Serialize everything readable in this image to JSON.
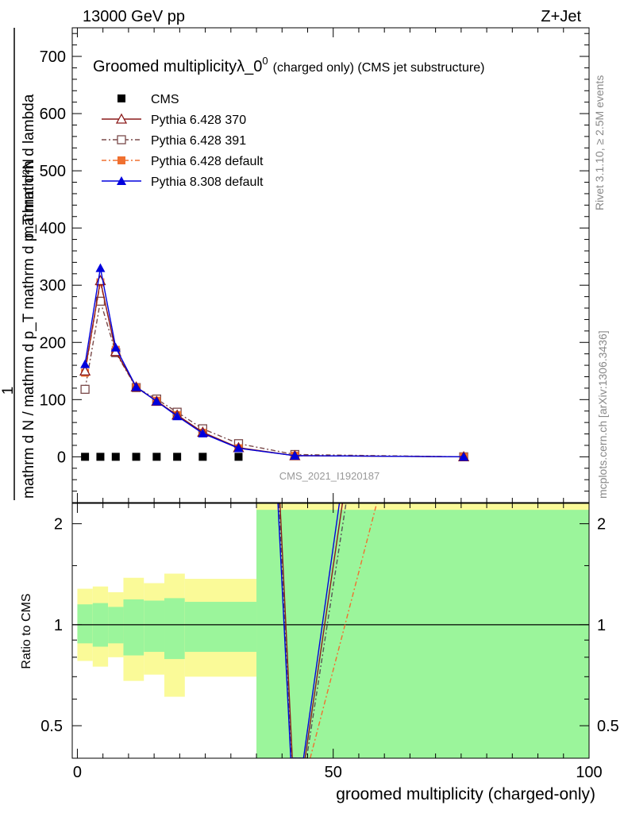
{
  "header": {
    "left": "13000 GeV pp",
    "right": "Z+Jet"
  },
  "side_labels": {
    "rivet": "Rivet 3.1.10, ≥ 2.5M events",
    "mcplots": "mcplots.cern.ch [arXiv:1306.3436]"
  },
  "watermark": "CMS_2021_I1920187",
  "chart_data": [
    {
      "type": "line",
      "title": "Groomed multiplicityλ_0",
      "title_sup": "0",
      "subtitle": "(charged only) (CMS jet substructure)",
      "ylabel_numerator": "mathrm d²N",
      "ylabel_denominator": "mathrm d N / mathrm d p_T mathrm d p_T mathrm d lambda",
      "ylabel_one": "1",
      "xlim": [
        -1,
        100
      ],
      "ylim": [
        -80,
        750
      ],
      "yticks": [
        0,
        100,
        200,
        300,
        400,
        500,
        600,
        700
      ],
      "legend_position": "top-left",
      "series": [
        {
          "name": "CMS",
          "color": "#000000",
          "marker": "square",
          "x": [
            1.5,
            4.5,
            7.5,
            11.5,
            15.5,
            19.5,
            24.5,
            31.5
          ],
          "y": [
            0,
            0,
            0,
            0,
            0,
            0,
            0,
            0
          ]
        },
        {
          "name": "Pythia 6.428 370",
          "color": "#8b1a1a",
          "marker": "triangle-open",
          "dash": "",
          "x": [
            1.5,
            4.5,
            7.5,
            11.5,
            15.5,
            19.5,
            24.5,
            31.5,
            42.5,
            75.5
          ],
          "y": [
            150,
            308,
            184,
            122,
            97,
            73,
            43,
            16,
            2,
            0
          ]
        },
        {
          "name": "Pythia 6.428 391",
          "color": "#7a4a4a",
          "marker": "square-open",
          "dash": "6,3,2,3",
          "x": [
            1.5,
            4.5,
            7.5,
            11.5,
            15.5,
            19.5,
            24.5,
            31.5,
            42.5,
            75.5
          ],
          "y": [
            118,
            272,
            182,
            121,
            101,
            78,
            49,
            23,
            4,
            0
          ]
        },
        {
          "name": "Pythia 6.428 default",
          "color": "#f07030",
          "marker": "square",
          "dash": "6,3,2,3",
          "x": [
            1.5,
            4.5,
            7.5,
            11.5,
            15.5,
            19.5,
            24.5,
            31.5,
            42.5,
            75.5
          ],
          "y": [
            147,
            305,
            187,
            121,
            98,
            73,
            42,
            15,
            2,
            0
          ]
        },
        {
          "name": "Pythia 8.308 default",
          "color": "#0000dd",
          "marker": "triangle",
          "dash": "",
          "x": [
            1.5,
            4.5,
            7.5,
            11.5,
            15.5,
            19.5,
            24.5,
            31.5,
            42.5,
            75.5
          ],
          "y": [
            162,
            330,
            191,
            122,
            97,
            71,
            41,
            15,
            2,
            0
          ]
        }
      ]
    },
    {
      "type": "line",
      "ylabel": "Ratio to CMS",
      "xlabel": "groomed multiplicity (charged-only)",
      "xlim": [
        -1,
        100
      ],
      "ylim": [
        0.4,
        2.3
      ],
      "yscale": "log",
      "yticks": [
        0.5,
        1,
        2
      ],
      "xticks": [
        0,
        50,
        100
      ],
      "bands": {
        "edges": [
          0,
          3,
          6,
          9,
          13,
          17,
          21,
          35,
          100
        ],
        "stat_low": [
          0.88,
          0.86,
          0.88,
          0.81,
          0.83,
          0.79,
          0.83,
          0.4
        ],
        "stat_high": [
          1.15,
          1.16,
          1.13,
          1.19,
          1.18,
          1.2,
          1.17,
          2.2
        ],
        "syst_low": [
          0.78,
          0.75,
          0.8,
          0.68,
          0.71,
          0.61,
          0.7,
          0.4
        ],
        "syst_high": [
          1.28,
          1.3,
          1.25,
          1.38,
          1.33,
          1.42,
          1.37,
          2.3
        ],
        "stat_color": "#9bf59b",
        "syst_color": "#fafa98"
      },
      "ratio_lines": [
        {
          "name": "Pythia 6.428 370",
          "color": "#8b1a1a",
          "dash": "",
          "points": [
            [
              39.6,
              2.3
            ],
            [
              42.0,
              0.4
            ],
            [
              44.5,
              0.4
            ],
            [
              51.8,
              2.3
            ]
          ]
        },
        {
          "name": "Pythia 6.428 391",
          "color": "#555555",
          "dash": "6,3,2,3",
          "points": [
            [
              39.4,
              2.3
            ],
            [
              41.8,
              0.4
            ],
            [
              44.8,
              0.4
            ],
            [
              52.5,
              2.3
            ]
          ]
        },
        {
          "name": "Pythia 6.428 default",
          "color": "#f07030",
          "dash": "6,3,2,3",
          "points": [
            [
              45.5,
              0.4
            ],
            [
              58.5,
              2.3
            ]
          ]
        },
        {
          "name": "Pythia 8.308 default",
          "color": "#0000dd",
          "dash": "",
          "points": [
            [
              39.2,
              2.3
            ],
            [
              41.7,
              0.4
            ],
            [
              44.2,
              0.4
            ],
            [
              51.2,
              2.3
            ]
          ]
        }
      ]
    }
  ]
}
